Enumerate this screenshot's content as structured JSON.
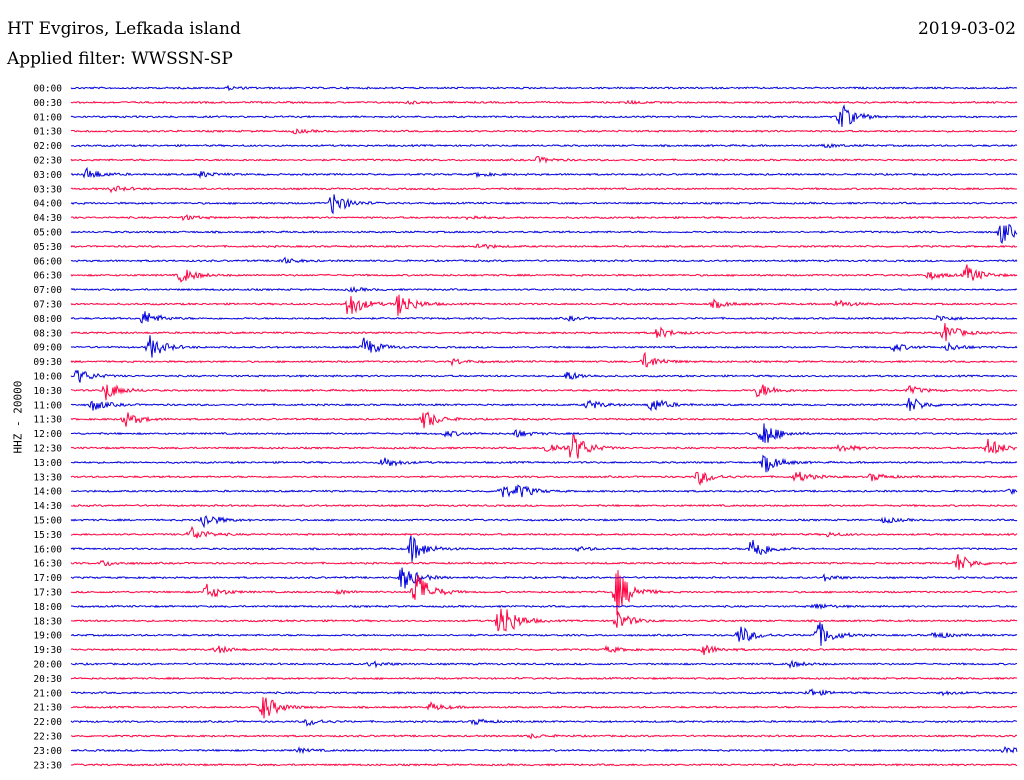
{
  "header": {
    "station": "HT Evgiros, Lefkada island",
    "filter": "Applied filter: WWSSN-SP",
    "date": "2019-03-02",
    "channel_label": "HHZ - 20000"
  },
  "colors": {
    "even_row": "#0000dd",
    "odd_row": "#ff0040"
  },
  "chart_data": {
    "type": "seismogram-helicorder",
    "title": "HT Evgiros, Lefkada island",
    "subtitle": "Applied filter: WWSSN-SP",
    "date": "2019-03-02",
    "ylabel": "HHZ - 20000",
    "rows": [
      "00:00",
      "00:30",
      "01:00",
      "01:30",
      "02:00",
      "02:30",
      "03:00",
      "03:30",
      "04:00",
      "04:30",
      "05:00",
      "05:30",
      "06:00",
      "06:30",
      "07:00",
      "07:30",
      "08:00",
      "08:30",
      "09:00",
      "09:30",
      "10:00",
      "10:30",
      "11:00",
      "11:30",
      "12:00",
      "12:30",
      "13:00",
      "13:30",
      "14:00",
      "14:30",
      "15:00",
      "15:30",
      "16:00",
      "16:30",
      "17:00",
      "17:30",
      "18:00",
      "18:30",
      "19:00",
      "19:30",
      "20:00",
      "20:30",
      "21:00",
      "21:30",
      "22:00",
      "22:30",
      "23:00",
      "23:30"
    ],
    "row_minutes": 30,
    "events": [
      {
        "row": "00:00",
        "min": 5.0,
        "amp": 1.5
      },
      {
        "row": "00:30",
        "min": 17.7,
        "amp": 1.5
      },
      {
        "row": "00:30",
        "min": 10.7,
        "amp": 1.2
      },
      {
        "row": "01:00",
        "min": 24.4,
        "amp": 14
      },
      {
        "row": "01:30",
        "min": 7.1,
        "amp": 2
      },
      {
        "row": "02:00",
        "min": 23.9,
        "amp": 2
      },
      {
        "row": "02:30",
        "min": 14.8,
        "amp": 3
      },
      {
        "row": "03:00",
        "min": 0.5,
        "amp": 6
      },
      {
        "row": "03:00",
        "min": 4.1,
        "amp": 3
      },
      {
        "row": "03:00",
        "min": 12.9,
        "amp": 2
      },
      {
        "row": "03:30",
        "min": 1.3,
        "amp": 3
      },
      {
        "row": "04:00",
        "min": 8.3,
        "amp": 12
      },
      {
        "row": "04:30",
        "min": 3.6,
        "amp": 2.5
      },
      {
        "row": "04:30",
        "min": 12.6,
        "amp": 2
      },
      {
        "row": "05:00",
        "min": 29.5,
        "amp": 12
      },
      {
        "row": "05:30",
        "min": 12.9,
        "amp": 3
      },
      {
        "row": "06:00",
        "min": 6.7,
        "amp": 3
      },
      {
        "row": "06:30",
        "min": 3.5,
        "amp": 8
      },
      {
        "row": "06:30",
        "min": 28.4,
        "amp": 10
      },
      {
        "row": "06:30",
        "min": 27.2,
        "amp": 4
      },
      {
        "row": "07:00",
        "min": 8.9,
        "amp": 2
      },
      {
        "row": "07:30",
        "min": 8.8,
        "amp": 14
      },
      {
        "row": "07:30",
        "min": 10.4,
        "amp": 14
      },
      {
        "row": "07:30",
        "min": 20.4,
        "amp": 4
      },
      {
        "row": "07:30",
        "min": 24.3,
        "amp": 4
      },
      {
        "row": "08:00",
        "min": 2.3,
        "amp": 8
      },
      {
        "row": "08:00",
        "min": 15.8,
        "amp": 2
      },
      {
        "row": "08:00",
        "min": 27.5,
        "amp": 3
      },
      {
        "row": "08:30",
        "min": 18.6,
        "amp": 6
      },
      {
        "row": "08:30",
        "min": 27.7,
        "amp": 10
      },
      {
        "row": "09:00",
        "min": 2.5,
        "amp": 12
      },
      {
        "row": "09:00",
        "min": 9.3,
        "amp": 10
      },
      {
        "row": "09:00",
        "min": 26.1,
        "amp": 4
      },
      {
        "row": "09:00",
        "min": 27.8,
        "amp": 4
      },
      {
        "row": "09:30",
        "min": 18.2,
        "amp": 8
      },
      {
        "row": "09:30",
        "min": 12.1,
        "amp": 3
      },
      {
        "row": "10:00",
        "min": 0.2,
        "amp": 8
      },
      {
        "row": "10:00",
        "min": 15.7,
        "amp": 5
      },
      {
        "row": "10:30",
        "min": 1.1,
        "amp": 10
      },
      {
        "row": "10:30",
        "min": 21.8,
        "amp": 8
      },
      {
        "row": "10:30",
        "min": 26.6,
        "amp": 4
      },
      {
        "row": "11:00",
        "min": 0.7,
        "amp": 6
      },
      {
        "row": "11:00",
        "min": 16.4,
        "amp": 5
      },
      {
        "row": "11:00",
        "min": 18.4,
        "amp": 8
      },
      {
        "row": "11:00",
        "min": 26.6,
        "amp": 8
      },
      {
        "row": "11:30",
        "min": 1.7,
        "amp": 8
      },
      {
        "row": "11:30",
        "min": 11.2,
        "amp": 10
      },
      {
        "row": "12:00",
        "min": 21.9,
        "amp": 16
      },
      {
        "row": "12:00",
        "min": 14.1,
        "amp": 4
      },
      {
        "row": "12:00",
        "min": 11.9,
        "amp": 3
      },
      {
        "row": "12:30",
        "min": 15.9,
        "amp": 16
      },
      {
        "row": "12:30",
        "min": 15.1,
        "amp": 6
      },
      {
        "row": "12:30",
        "min": 29.1,
        "amp": 10
      },
      {
        "row": "12:30",
        "min": 24.4,
        "amp": 4
      },
      {
        "row": "13:00",
        "min": 9.9,
        "amp": 6
      },
      {
        "row": "13:00",
        "min": 22.0,
        "amp": 10
      },
      {
        "row": "13:30",
        "min": 19.9,
        "amp": 8
      },
      {
        "row": "13:30",
        "min": 23.0,
        "amp": 6
      },
      {
        "row": "13:30",
        "min": 25.4,
        "amp": 4
      },
      {
        "row": "14:00",
        "min": 13.6,
        "amp": 8
      },
      {
        "row": "14:00",
        "min": 14.2,
        "amp": 6
      },
      {
        "row": "14:00",
        "min": 29.8,
        "amp": 2
      },
      {
        "row": "15:00",
        "min": 4.2,
        "amp": 8
      },
      {
        "row": "15:00",
        "min": 25.8,
        "amp": 3
      },
      {
        "row": "15:30",
        "min": 3.8,
        "amp": 8
      },
      {
        "row": "15:30",
        "min": 24.0,
        "amp": 2
      },
      {
        "row": "16:00",
        "min": 10.8,
        "amp": 14
      },
      {
        "row": "16:00",
        "min": 21.6,
        "amp": 14
      },
      {
        "row": "16:00",
        "min": 16.1,
        "amp": 2
      },
      {
        "row": "16:30",
        "min": 1.0,
        "amp": 3
      },
      {
        "row": "16:30",
        "min": 28.1,
        "amp": 10
      },
      {
        "row": "17:00",
        "min": 10.5,
        "amp": 14
      },
      {
        "row": "17:00",
        "min": 23.9,
        "amp": 3
      },
      {
        "row": "17:30",
        "min": 10.9,
        "amp": 24
      },
      {
        "row": "17:30",
        "min": 17.3,
        "amp": 24
      },
      {
        "row": "17:30",
        "min": 4.3,
        "amp": 8
      },
      {
        "row": "17:30",
        "min": 8.5,
        "amp": 2
      },
      {
        "row": "18:00",
        "min": 23.6,
        "amp": 3
      },
      {
        "row": "18:30",
        "min": 13.6,
        "amp": 24
      },
      {
        "row": "18:30",
        "min": 17.3,
        "amp": 10
      },
      {
        "row": "19:00",
        "min": 21.2,
        "amp": 10
      },
      {
        "row": "19:00",
        "min": 23.7,
        "amp": 14
      },
      {
        "row": "19:00",
        "min": 27.4,
        "amp": 4
      },
      {
        "row": "19:30",
        "min": 4.6,
        "amp": 4
      },
      {
        "row": "19:30",
        "min": 20.0,
        "amp": 6
      },
      {
        "row": "19:30",
        "min": 17.0,
        "amp": 3
      },
      {
        "row": "20:00",
        "min": 9.5,
        "amp": 3
      },
      {
        "row": "20:00",
        "min": 22.8,
        "amp": 3
      },
      {
        "row": "21:00",
        "min": 23.4,
        "amp": 4
      },
      {
        "row": "21:00",
        "min": 27.6,
        "amp": 2
      },
      {
        "row": "21:30",
        "min": 6.1,
        "amp": 14
      },
      {
        "row": "21:30",
        "min": 11.4,
        "amp": 4
      },
      {
        "row": "22:00",
        "min": 7.5,
        "amp": 4
      },
      {
        "row": "22:00",
        "min": 12.8,
        "amp": 3
      },
      {
        "row": "22:30",
        "min": 14.6,
        "amp": 2
      },
      {
        "row": "23:00",
        "min": 7.2,
        "amp": 2
      },
      {
        "row": "23:00",
        "min": 29.6,
        "amp": 4
      }
    ]
  }
}
